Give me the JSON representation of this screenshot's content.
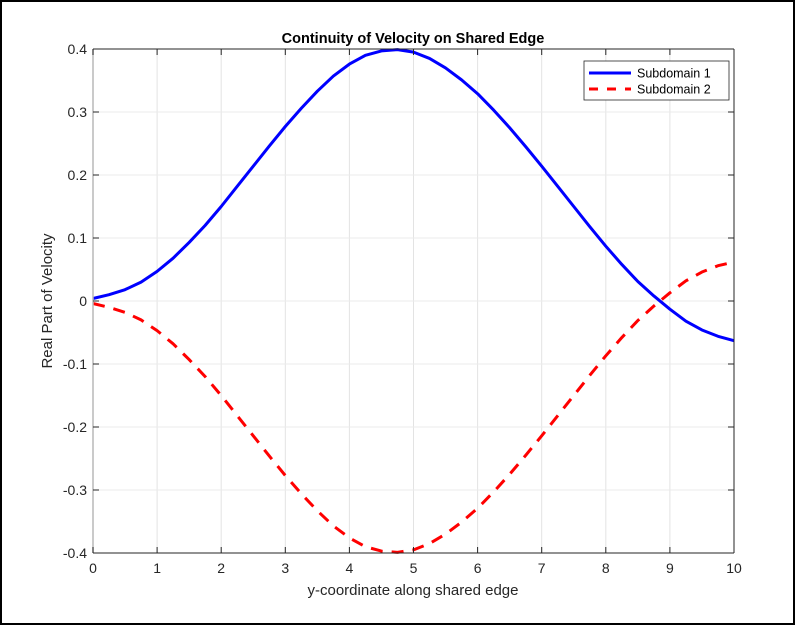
{
  "chart_data": {
    "type": "line",
    "title": "Continuity of Velocity on Shared Edge",
    "xlabel": "y-coordinate along shared edge",
    "ylabel": "Real Part of Velocity",
    "xlim": [
      0,
      10
    ],
    "ylim": [
      -0.4,
      0.4
    ],
    "xticks": [
      0,
      1,
      2,
      3,
      4,
      5,
      6,
      7,
      8,
      9,
      10
    ],
    "xtick_labels": [
      "0",
      "1",
      "2",
      "3",
      "4",
      "5",
      "6",
      "7",
      "8",
      "9",
      "10"
    ],
    "yticks": [
      -0.4,
      -0.3,
      -0.2,
      -0.1,
      0,
      0.1,
      0.2,
      0.3,
      0.4
    ],
    "ytick_labels": [
      "-0.4",
      "-0.3",
      "-0.2",
      "-0.1",
      "0",
      "0.1",
      "0.2",
      "0.3",
      "0.4"
    ],
    "grid": true,
    "legend_position": "top-right",
    "x": [
      0,
      0.25,
      0.5,
      0.75,
      1,
      1.25,
      1.5,
      1.75,
      2,
      2.25,
      2.5,
      2.75,
      3,
      3.25,
      3.5,
      3.75,
      4,
      4.25,
      4.5,
      4.75,
      5,
      5.25,
      5.5,
      5.75,
      6,
      6.25,
      6.5,
      6.75,
      7,
      7.25,
      7.5,
      7.75,
      8,
      8.25,
      8.5,
      8.75,
      9,
      9.25,
      9.5,
      9.75,
      10
    ],
    "series": [
      {
        "name": "Subdomain 1",
        "color": "#0000ff",
        "style": "solid",
        "values": [
          0.004,
          0.01,
          0.018,
          0.03,
          0.047,
          0.068,
          0.093,
          0.12,
          0.15,
          0.182,
          0.214,
          0.246,
          0.277,
          0.306,
          0.333,
          0.357,
          0.376,
          0.39,
          0.397,
          0.399,
          0.395,
          0.385,
          0.37,
          0.351,
          0.329,
          0.303,
          0.275,
          0.245,
          0.214,
          0.182,
          0.15,
          0.118,
          0.087,
          0.058,
          0.031,
          0.008,
          -0.013,
          -0.032,
          -0.046,
          -0.056,
          -0.063
        ]
      },
      {
        "name": "Subdomain 2",
        "color": "#ff0000",
        "style": "dashed",
        "values": [
          -0.004,
          -0.01,
          -0.018,
          -0.03,
          -0.047,
          -0.068,
          -0.093,
          -0.12,
          -0.15,
          -0.182,
          -0.214,
          -0.246,
          -0.277,
          -0.306,
          -0.333,
          -0.357,
          -0.376,
          -0.39,
          -0.397,
          -0.399,
          -0.395,
          -0.385,
          -0.37,
          -0.351,
          -0.329,
          -0.303,
          -0.275,
          -0.245,
          -0.214,
          -0.182,
          -0.15,
          -0.118,
          -0.087,
          -0.058,
          -0.031,
          -0.008,
          0.013,
          0.032,
          0.046,
          0.056,
          0.062
        ]
      }
    ]
  }
}
